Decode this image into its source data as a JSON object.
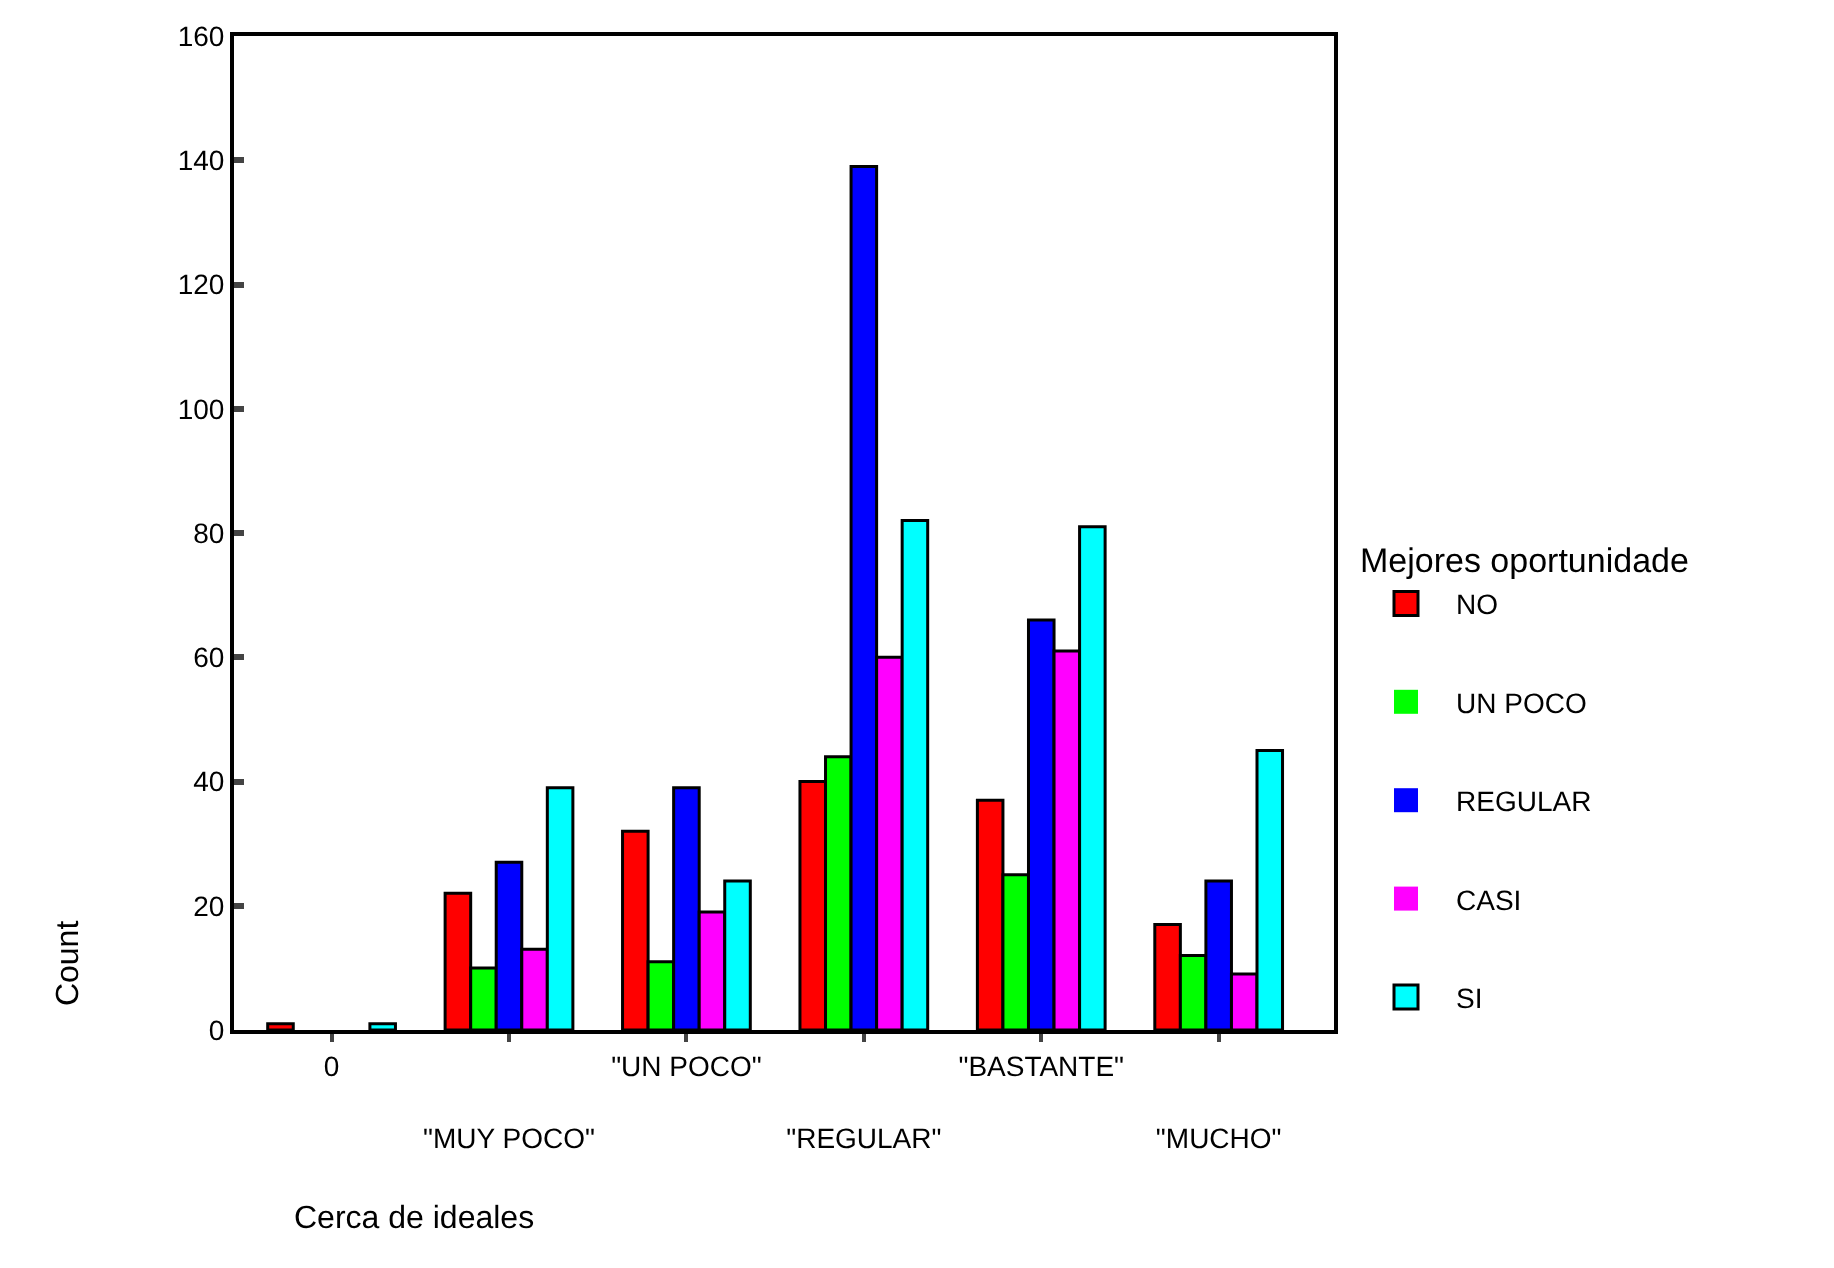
{
  "chart_data": {
    "type": "bar",
    "xlabel": "Cerca de ideales",
    "ylabel": "Count",
    "legend_title": "Mejores oportunidade",
    "categories": [
      "0",
      "\"MUY POCO\"",
      "\"UN POCO\"",
      "\"REGULAR\"",
      "\"BASTANTE\"",
      "\"MUCHO\""
    ],
    "series": [
      {
        "name": "NO",
        "color": "#ff0000",
        "values": [
          1,
          22,
          32,
          40,
          37,
          17
        ]
      },
      {
        "name": "UN POCO",
        "color": "#00ff00",
        "values": [
          0,
          10,
          11,
          44,
          25,
          12
        ]
      },
      {
        "name": "REGULAR",
        "color": "#0000ff",
        "values": [
          0,
          27,
          39,
          139,
          66,
          24
        ]
      },
      {
        "name": "CASI",
        "color": "#ff00ff",
        "values": [
          0,
          13,
          19,
          60,
          61,
          9
        ]
      },
      {
        "name": "SI",
        "color": "#00ffff",
        "values": [
          1,
          39,
          24,
          82,
          81,
          45
        ]
      }
    ],
    "ylim": [
      0,
      160
    ],
    "yticks": [
      0,
      20,
      40,
      60,
      80,
      100,
      120,
      140,
      160
    ],
    "grid": false,
    "legend": "right"
  }
}
